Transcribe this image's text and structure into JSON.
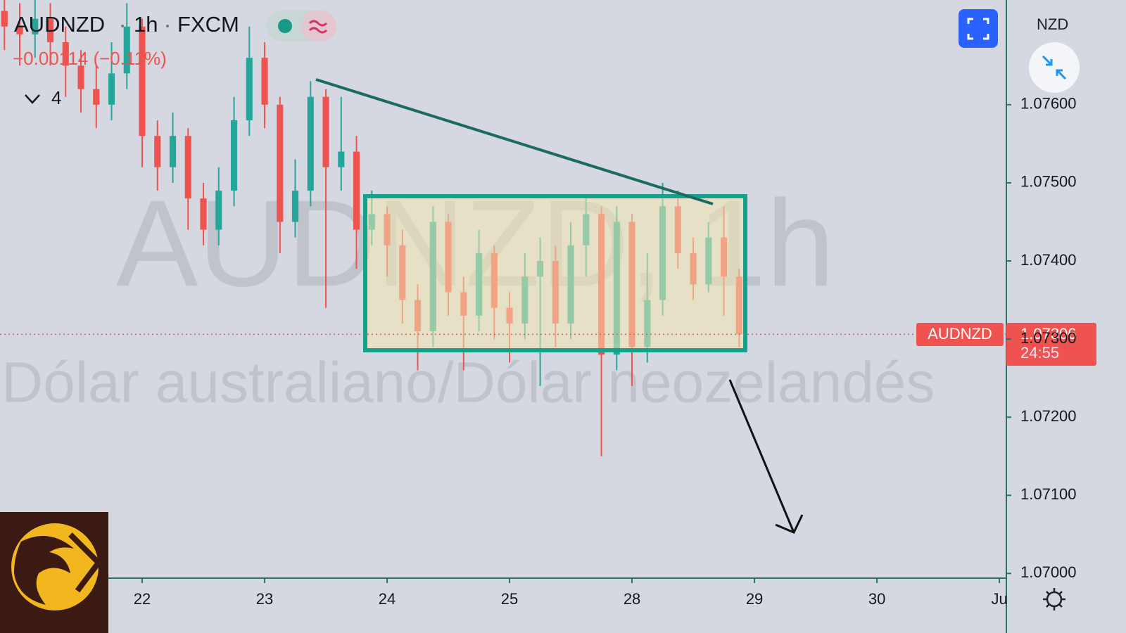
{
  "chart_data": {
    "type": "candlestick",
    "symbol": "AUDNZD",
    "interval": "1h",
    "exchange": "FXCM",
    "change": "−0.00114 (−0.11%)",
    "indicator_count": 4,
    "watermark": "AUDNZD, 1h",
    "description": "Dólar australiano/Dólar neozelandés",
    "currency": "NZD",
    "last_price": {
      "value": 1.07306,
      "label": "1.07306"
    },
    "countdown": "24:55",
    "up_color": "#26a69a",
    "down_color": "#ef5350",
    "x": [
      -1.125,
      -1.0,
      -0.875,
      -0.75,
      -0.625,
      -0.5,
      -0.375,
      -0.25,
      -0.125,
      0.0,
      0.125,
      0.25,
      0.375,
      0.5,
      0.625,
      0.75,
      0.875,
      1.0,
      1.125,
      1.25,
      1.375,
      1.5,
      1.625,
      1.75,
      1.875,
      2.0,
      2.125,
      2.25,
      2.375,
      2.5,
      2.625,
      2.75,
      2.875,
      3.0,
      3.125,
      3.25,
      3.375,
      3.5,
      3.625,
      3.75,
      3.875,
      4.0,
      4.125,
      4.25,
      4.375,
      4.5,
      4.625,
      4.75,
      4.875
    ],
    "open": [
      1.0772,
      1.077,
      1.0769,
      1.0771,
      1.0768,
      1.0765,
      1.0762,
      1.076,
      1.0764,
      1.077,
      1.0756,
      1.0752,
      1.0756,
      1.0748,
      1.0744,
      1.0749,
      1.0758,
      1.0766,
      1.076,
      1.0745,
      1.0749,
      1.0761,
      1.0752,
      1.0754,
      1.0744,
      1.0746,
      1.0742,
      1.0735,
      1.0731,
      1.0745,
      1.0736,
      1.0733,
      1.0741,
      1.0734,
      1.0732,
      1.0738,
      1.074,
      1.0732,
      1.0742,
      1.0746,
      1.0728,
      1.0745,
      1.0729,
      1.0735,
      1.0747,
      1.0741,
      1.0737,
      1.0743,
      1.0738
    ],
    "high": [
      1.0776,
      1.0773,
      1.0774,
      1.0773,
      1.077,
      1.0767,
      1.0765,
      1.0768,
      1.0773,
      1.0771,
      1.0758,
      1.0759,
      1.0757,
      1.075,
      1.0752,
      1.0761,
      1.077,
      1.0768,
      1.0761,
      1.0753,
      1.0763,
      1.0762,
      1.0761,
      1.0756,
      1.0749,
      1.0747,
      1.0744,
      1.0737,
      1.0747,
      1.0746,
      1.0738,
      1.0744,
      1.0742,
      1.0736,
      1.0741,
      1.0743,
      1.0742,
      1.0745,
      1.0748,
      1.0747,
      1.0747,
      1.0746,
      1.0741,
      1.075,
      1.0749,
      1.0743,
      1.0745,
      1.0747,
      1.0739
    ],
    "low": [
      1.0767,
      1.0765,
      1.0766,
      1.0765,
      1.0761,
      1.0759,
      1.0757,
      1.0758,
      1.0762,
      1.0752,
      1.0749,
      1.075,
      1.0744,
      1.0742,
      1.0742,
      1.0747,
      1.0756,
      1.0757,
      1.0741,
      1.0743,
      1.0747,
      1.0734,
      1.0749,
      1.0739,
      1.0742,
      1.0738,
      1.0732,
      1.0726,
      1.0729,
      1.0733,
      1.0726,
      1.0731,
      1.073,
      1.0727,
      1.073,
      1.0724,
      1.0729,
      1.073,
      1.0738,
      1.0715,
      1.0726,
      1.0724,
      1.0727,
      1.0733,
      1.0739,
      1.0735,
      1.0736,
      1.0733,
      1.0729
    ],
    "close": [
      1.077,
      1.0769,
      1.0771,
      1.0768,
      1.0765,
      1.0762,
      1.076,
      1.0764,
      1.077,
      1.0756,
      1.0752,
      1.0756,
      1.0748,
      1.0744,
      1.0749,
      1.0758,
      1.0766,
      1.076,
      1.0745,
      1.0749,
      1.0761,
      1.0752,
      1.0754,
      1.0744,
      1.0746,
      1.0742,
      1.0735,
      1.0731,
      1.0745,
      1.0736,
      1.0733,
      1.0741,
      1.0734,
      1.0732,
      1.0738,
      1.074,
      1.0732,
      1.0742,
      1.0746,
      1.0728,
      1.0745,
      1.0729,
      1.0735,
      1.0747,
      1.0741,
      1.0737,
      1.0743,
      1.0738,
      1.07306
    ],
    "xlim": [
      -1.161,
      7.057
    ],
    "ylim": [
      1.06994,
      1.07734
    ],
    "xticks": [
      {
        "value": 0,
        "label": "22"
      },
      {
        "value": 1,
        "label": "23"
      },
      {
        "value": 2,
        "label": "24"
      },
      {
        "value": 3,
        "label": "25"
      },
      {
        "value": 4,
        "label": "28"
      },
      {
        "value": 5,
        "label": "29"
      },
      {
        "value": 6,
        "label": "30"
      },
      {
        "value": 7,
        "label": "Ju"
      }
    ],
    "yticks": [
      {
        "value": 1.076,
        "label": "1.07600"
      },
      {
        "value": 1.075,
        "label": "1.07500"
      },
      {
        "value": 1.074,
        "label": "1.07400"
      },
      {
        "value": 1.073,
        "label": "1.07300"
      },
      {
        "value": 1.072,
        "label": "1.07200"
      },
      {
        "value": 1.071,
        "label": "1.07100"
      },
      {
        "value": 1.07,
        "label": "1.07000"
      }
    ]
  }
}
